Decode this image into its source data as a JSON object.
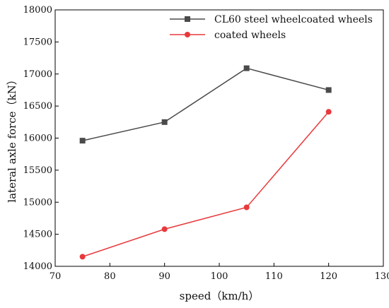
{
  "chart_data": {
    "type": "line",
    "title": "",
    "xlabel": "speed（km/h）",
    "ylabel": "lateral axle force（kN）",
    "xlim": [
      70,
      130
    ],
    "ylim": [
      14000,
      18000
    ],
    "xticks": [
      70,
      80,
      90,
      100,
      110,
      120,
      130
    ],
    "yticks": [
      14000,
      14500,
      15000,
      15500,
      16000,
      16500,
      17000,
      17500,
      18000
    ],
    "grid": false,
    "legend_position": "top-right",
    "x": [
      75,
      90,
      105,
      120
    ],
    "series": [
      {
        "name": "CL60 steel wheelcoated wheels",
        "values": [
          15960,
          16250,
          17090,
          16750
        ],
        "color": "#4a4a4a",
        "marker": "square"
      },
      {
        "name": "coated wheels",
        "values": [
          14150,
          14580,
          14920,
          16410
        ],
        "color": "#e8393c",
        "marker": "circle"
      }
    ]
  }
}
